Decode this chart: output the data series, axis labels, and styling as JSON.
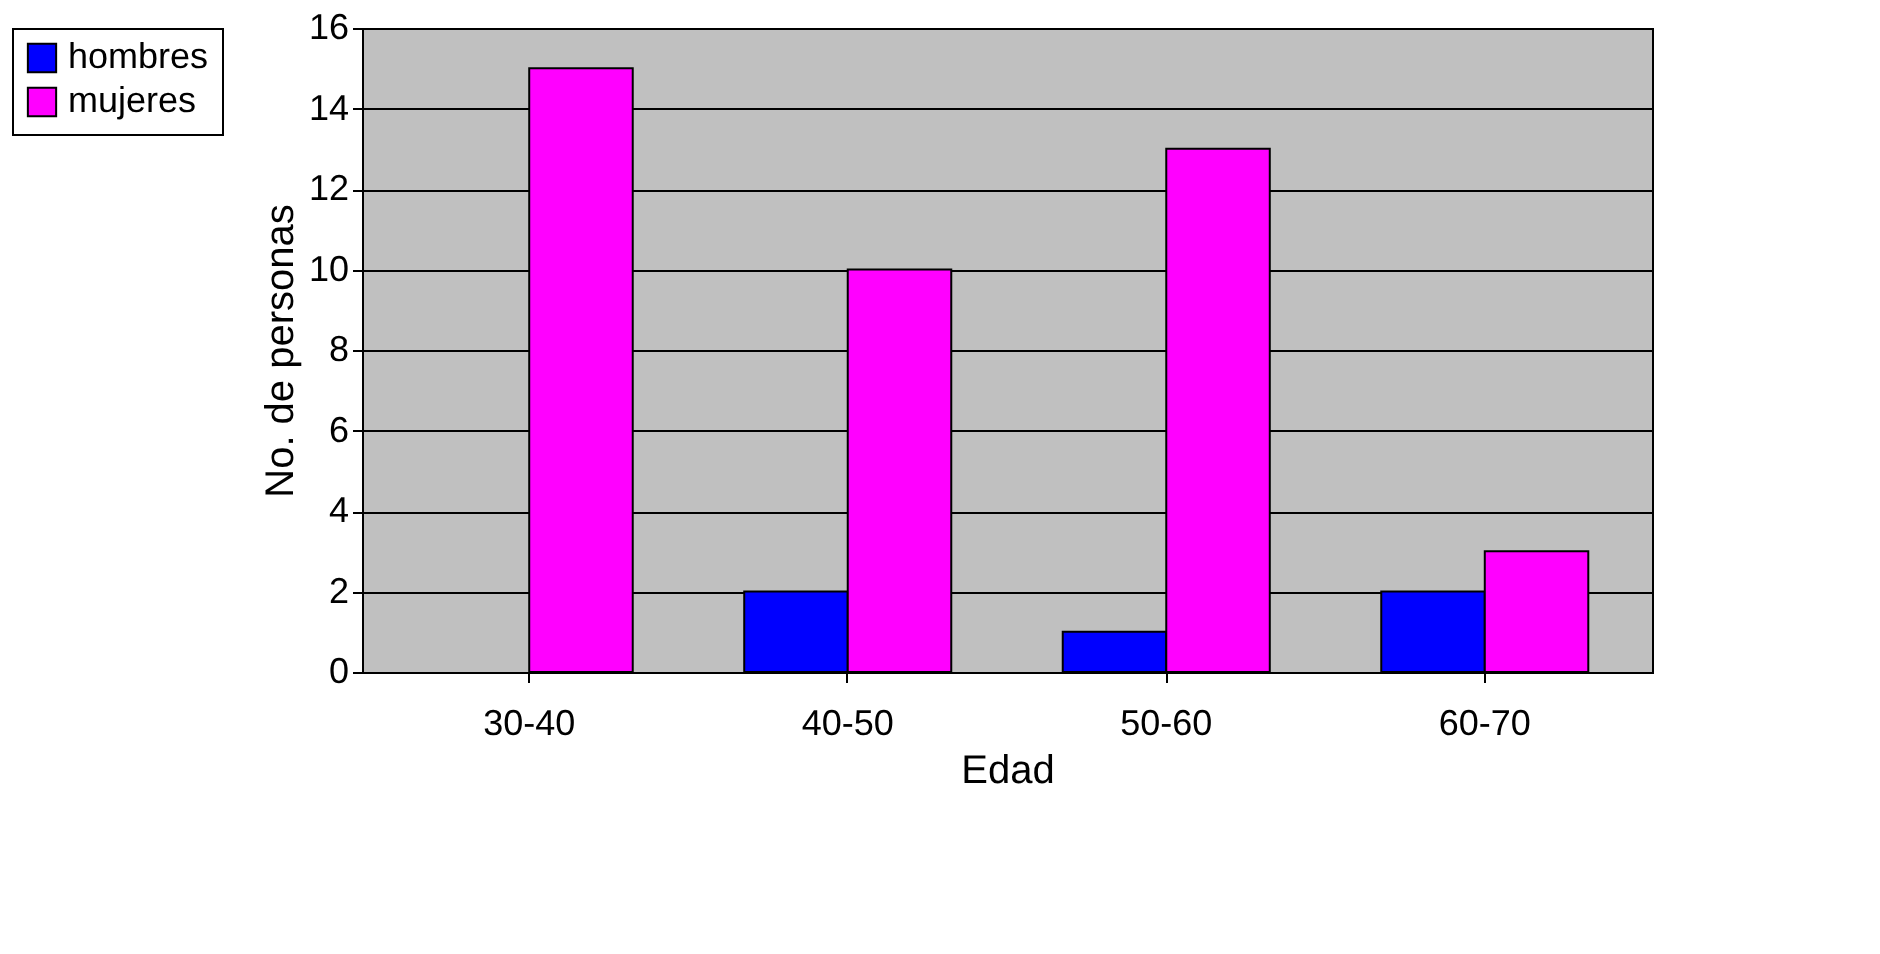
{
  "chart_data": {
    "type": "bar",
    "xlabel": "Edad",
    "ylabel": "No. de personas",
    "categories": [
      "30-40",
      "40-50",
      "50-60",
      "60-70"
    ],
    "series": [
      {
        "name": "hombres",
        "color": "#0000ff",
        "values": [
          null,
          2,
          1,
          2
        ]
      },
      {
        "name": "mujeres",
        "color": "#ff00ff",
        "values": [
          15,
          10,
          13,
          3
        ]
      }
    ],
    "ylim": [
      0,
      16
    ],
    "yticks": [
      0,
      2,
      4,
      6,
      8,
      10,
      12,
      14,
      16
    ],
    "grid": "y",
    "legend": "left"
  }
}
